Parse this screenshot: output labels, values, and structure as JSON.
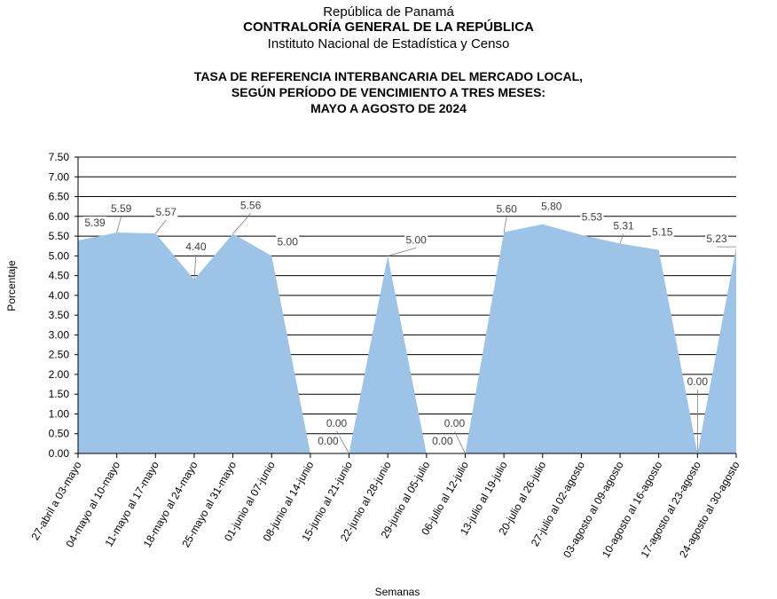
{
  "header": {
    "line1": "República de Panamá",
    "line2": "CONTRALORÍA GENERAL DE LA REPÚBLICA",
    "line3": "Instituto Nacional de Estadística y Censo"
  },
  "chart_data": {
    "type": "area",
    "title": [
      "TASA DE REFERENCIA INTERBANCARIA DEL MERCADO LOCAL,",
      "SEGÚN PERÍODO DE VENCIMIENTO A TRES MESES:",
      "MAYO A AGOSTO DE 2024"
    ],
    "xlabel": "Semanas",
    "ylabel": "Porcentaje",
    "ylim": [
      0,
      7.5
    ],
    "yticks": [
      "0.00",
      "0.50",
      "1.00",
      "1.50",
      "2.00",
      "2.50",
      "3.00",
      "3.50",
      "4.00",
      "4.50",
      "5.00",
      "5.50",
      "6.00",
      "6.50",
      "7.00",
      "7.50"
    ],
    "grid": true,
    "fill_color": "#9DC3E6",
    "categories": [
      "27-abril a 03-mayo",
      "04-mayo al 10-mayo",
      "11-mayo al 17-mayo",
      "18-mayo al 24-mayo",
      "25-mayo al 31-mayo",
      "01-junio al 07-junio",
      "08-junio al 14-junio",
      "15-junio al 21-junio",
      "22-junio al 28-junio",
      "29-junio al 05-julio",
      "06-julio al 12-julio",
      "13-julio al 19-julio",
      "20-julio al 26-julio",
      "27-julio al 02-agosto",
      "03-agosto al 09-agosto",
      "10-agosto al 16-agosto",
      "17-agosto al 23-agosto",
      "24-agosto al 30-agosto"
    ],
    "values": [
      5.39,
      5.59,
      5.57,
      4.4,
      5.56,
      5.0,
      0.0,
      0.0,
      5.0,
      0.0,
      0.0,
      5.6,
      5.8,
      5.53,
      5.31,
      5.15,
      0.0,
      5.23
    ],
    "data_labels": [
      "5.39",
      "5.59",
      "5.57",
      "4.40",
      "5.56",
      "5.00",
      "0.00",
      "0.00",
      "5.00",
      "0.00",
      "0.00",
      "5.60",
      "5.80",
      "5.53",
      "5.31",
      "5.15",
      "0.00",
      "5.23"
    ]
  }
}
